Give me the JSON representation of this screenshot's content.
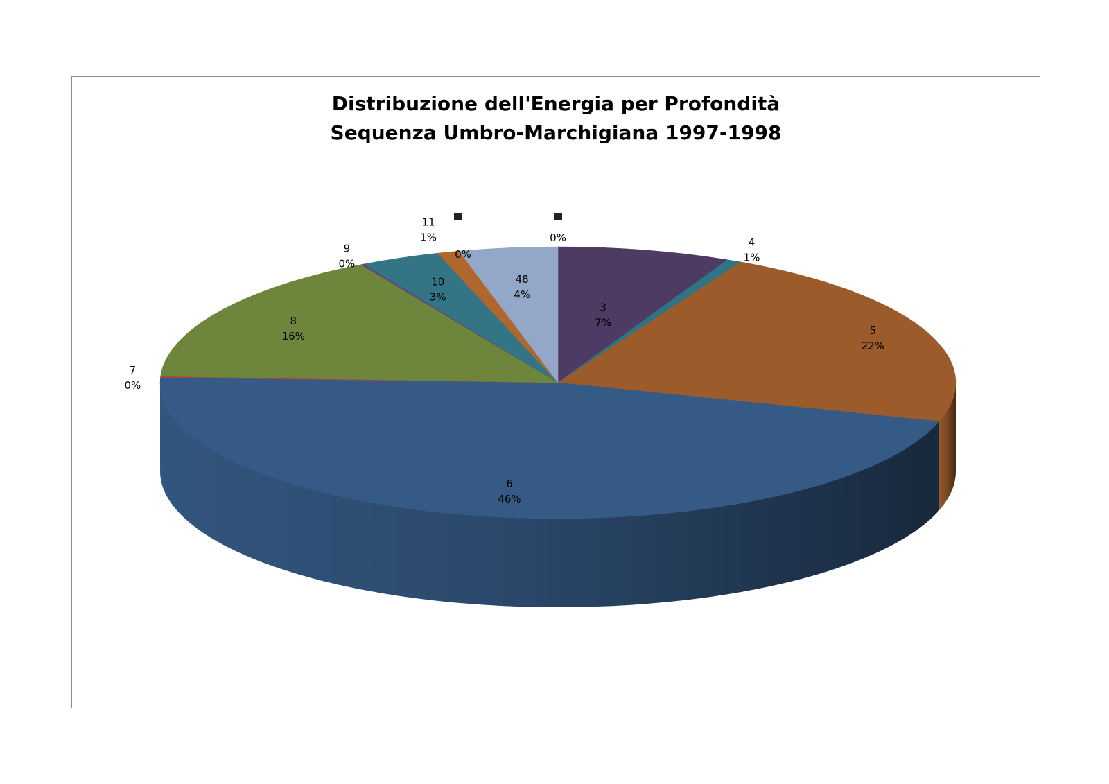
{
  "chart_data": {
    "type": "pie",
    "variant": "3d",
    "title_lines": [
      "Distribuzione dell'Energia per Profondità",
      "Sequenza Umbro-Marchigiana 1997-1998"
    ],
    "slices": [
      {
        "category": "3",
        "percent_label": "7%",
        "value": 7.0,
        "color": "#4e3b63"
      },
      {
        "category": "4",
        "percent_label": "1%",
        "value": 0.6,
        "color": "#2e7485"
      },
      {
        "category": "5",
        "percent_label": "22%",
        "value": 22.0,
        "color": "#9b5b2a"
      },
      {
        "category": "6",
        "percent_label": "46%",
        "value": 46.0,
        "color": "#355a85"
      },
      {
        "category": "7",
        "percent_label": "0%",
        "value": 0.15,
        "color": "#a04743"
      },
      {
        "category": "8",
        "percent_label": "16%",
        "value": 16.0,
        "color": "#6e853c"
      },
      {
        "category": "9",
        "percent_label": "0%",
        "value": 0.15,
        "color": "#5c4a78"
      },
      {
        "category": "10",
        "percent_label": "3%",
        "value": 3.2,
        "color": "#337585"
      },
      {
        "category": "11",
        "percent_label": "1%",
        "value": 0.9,
        "color": "#b0672e"
      },
      {
        "category": "48",
        "percent_label": "4%",
        "value": 4.0,
        "color": "#93a7c8"
      }
    ],
    "overlapping_labels": [
      {
        "text": "11",
        "sub": "1%"
      },
      {
        "text": "0%"
      },
      {
        "text": "0%"
      }
    ],
    "legend": "none"
  }
}
